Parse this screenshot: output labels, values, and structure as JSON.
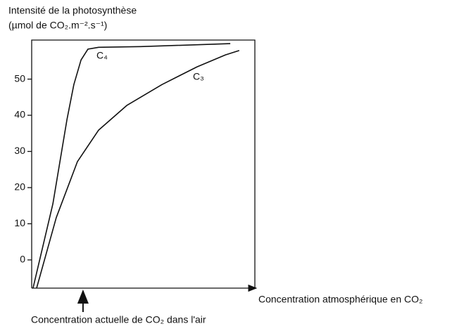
{
  "chart_data": {
    "type": "line",
    "title": "Intensité de la photosynthèse",
    "subtitle": "(µmol de CO₂.m⁻².s⁻¹)",
    "x_label": "Concentration atmosphérique en CO₂",
    "xlim": [
      0,
      100
    ],
    "ylim": [
      -7.8,
      60.8
    ],
    "yticks": [
      0,
      10,
      20,
      30,
      40,
      50
    ],
    "series": [
      {
        "name": "C₄",
        "color": "#111111",
        "x": [
          0.6,
          9.5,
          15.8,
          18.9,
          22.1,
          25.2,
          30,
          48.9,
          89
        ],
        "values": [
          -7.8,
          15.5,
          38.8,
          48.5,
          55.3,
          58.3,
          58.8,
          59,
          59.8
        ]
      },
      {
        "name": "C₃",
        "color": "#111111",
        "x": [
          2.2,
          11,
          20.5,
          30,
          42.6,
          58.4,
          74.1,
          86.8,
          93
        ],
        "values": [
          -7.8,
          11.7,
          27.2,
          35.9,
          42.7,
          48.5,
          53.4,
          56.7,
          57.9
        ]
      }
    ],
    "annotation": {
      "text": "Concentration actuelle de CO₂ dans l'air",
      "x": 23
    }
  }
}
